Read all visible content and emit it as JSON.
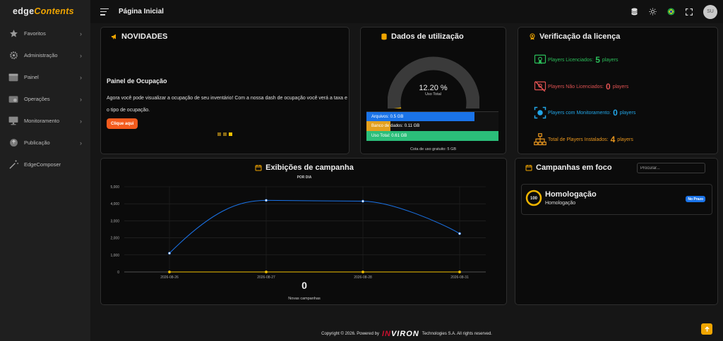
{
  "app": {
    "logo_part1": "edge",
    "logo_part2": "Contents"
  },
  "sidebar": {
    "items": [
      {
        "label": "Favoritos",
        "icon": "star-icon",
        "chevron": "›"
      },
      {
        "label": "Administração",
        "icon": "gear-icon",
        "chevron": "›"
      },
      {
        "label": "Painel",
        "icon": "window-icon",
        "chevron": "›"
      },
      {
        "label": "Operações",
        "icon": "operations-icon",
        "chevron": "›"
      },
      {
        "label": "Monitoramento",
        "icon": "monitor-icon",
        "chevron": "›"
      },
      {
        "label": "Publicação",
        "icon": "publish-icon",
        "chevron": "›"
      },
      {
        "label": "EdgeComposer",
        "icon": "magic-wand-icon"
      }
    ]
  },
  "header": {
    "title": "Página Inicial",
    "avatar_initials": "SU"
  },
  "novidades": {
    "title": "NOVIDADES",
    "subtitle": "Painel de Ocupação",
    "text": "Agora você pode visualizar a ocupação de seu inventário! Com a nossa dash de ocupação você verá a taxa e o tipo de ocupação.",
    "button": "Clique aqui",
    "slide_count": 3,
    "active_slide": 3
  },
  "uso": {
    "title": "Dados de utilização",
    "percent": "12.20 %",
    "percent_label": "Uso Total",
    "percent_value": 0.122,
    "bars": [
      {
        "label": "Arquivos: 0.5 GB",
        "fill": 0.82,
        "color": "#1a73e8"
      },
      {
        "label": "Banco de dados: 0.11 GB",
        "fill": 0.18,
        "color": "#e3a01e"
      },
      {
        "label": "Uso Total: 0.61 GB",
        "fill": 1.0,
        "color": "#2bbf7a"
      }
    ],
    "quota": "Cota de uso gratuito: 5 GB"
  },
  "licenca": {
    "title": "Verificação da licença",
    "rows": [
      {
        "label": "Players Licenciados:",
        "count": "5",
        "unit": "players",
        "color": "#2bbf5a"
      },
      {
        "label": "Players Não Licenciados:",
        "count": "0",
        "unit": "players",
        "color": "#e05252"
      },
      {
        "label": "Players com Monitoramento:",
        "count": "0",
        "unit": "players",
        "color": "#22a6e8"
      },
      {
        "label": "Total de Players Instalados:",
        "count": "4",
        "unit": "players",
        "color": "#e8961e"
      }
    ]
  },
  "exibicoes": {
    "title": "Exibições de campanha",
    "total": "0",
    "total_label": "Novas campanhas"
  },
  "chart_data": {
    "type": "line",
    "title": "POR DIA",
    "categories": [
      "2026-08-26",
      "2026-08-27",
      "2026-08-28",
      "2026-08-31"
    ],
    "series": [
      {
        "values": [
          1100,
          4200,
          4150,
          2250
        ],
        "color": "#1a73e8"
      },
      {
        "values": [
          0,
          0,
          0,
          0
        ],
        "color": "#f0c000"
      }
    ],
    "yticks": [
      "0",
      "1,000",
      "2,000",
      "3,000",
      "4,000",
      "5,000"
    ],
    "ylim": [
      0,
      5000
    ],
    "grid": true
  },
  "foco": {
    "title": "Campanhas em foco",
    "search_placeholder": "Procurar...",
    "items": [
      {
        "progress": "100",
        "name": "Homologação",
        "subtitle": "Homologação",
        "badge": "No Prazo"
      }
    ]
  },
  "footer": {
    "prefix": "Copyright © 2026. Powered by",
    "brand_a": "IN",
    "brand_b": "VIRON",
    "suffix": "Technologies S.A. All rights reserved."
  }
}
